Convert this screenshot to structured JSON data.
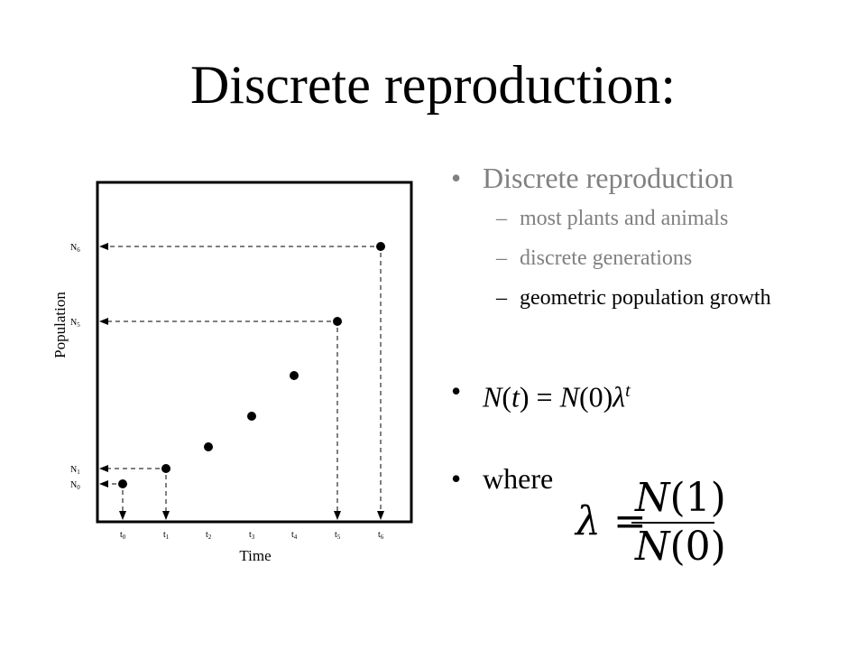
{
  "slide": {
    "title": "Discrete reproduction:"
  },
  "figure": {
    "y_axis_label": "Population",
    "x_axis_label": "Time",
    "y_ticks": [
      "N6",
      "N5",
      "N1",
      "N0"
    ],
    "x_ticks": [
      "t0",
      "t1",
      "t2",
      "t3",
      "t4",
      "t5",
      "t6"
    ]
  },
  "bullets": {
    "main_label": "Discrete reproduction",
    "sub_items": [
      "most plants and animals",
      "discrete generations",
      "geometric population growth"
    ],
    "equation": {
      "N": "N",
      "t": "t",
      "zero": "0",
      "lambda": "λ",
      "one": "1",
      "equals": "="
    },
    "where_label": "where"
  },
  "colors": {
    "muted_text": "#808080",
    "text": "#000000"
  }
}
